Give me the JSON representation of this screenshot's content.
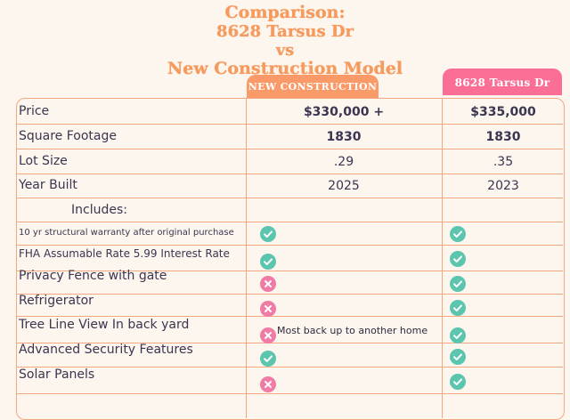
{
  "title": {
    "line1": "Comparison:",
    "line2": "8628 Tarsus Dr",
    "line3": "vs",
    "line4": "New Construction Model"
  },
  "columns": {
    "new_construction": "NEW CONSTRUCTION",
    "tarsus": "8628 Tarsus Dr"
  },
  "rows": {
    "price": {
      "label": "Price",
      "new": "$330,000 +",
      "tarsus": "$335,000"
    },
    "sqft": {
      "label": "Square Footage",
      "new": "1830",
      "tarsus": "1830"
    },
    "lot": {
      "label": "Lot Size",
      "new": ".29",
      "tarsus": ".35"
    },
    "year": {
      "label": "Year Built",
      "new": "2025",
      "tarsus": "2023"
    },
    "includes": {
      "label": "Includes:"
    },
    "warranty": {
      "label": "10 yr structural warranty after original purchase",
      "new": "check-icon",
      "tarsus": "check-icon"
    },
    "fha": {
      "label": "FHA Assumable Rate 5.99 Interest Rate",
      "new": "check-icon",
      "tarsus": "check-icon"
    },
    "fence": {
      "label": "Privacy Fence with gate",
      "new": "x-icon",
      "tarsus": "check-icon"
    },
    "fridge": {
      "label": "Refrigerator",
      "new": "x-icon",
      "tarsus": "check-icon"
    },
    "tree": {
      "label": "Tree Line View In back yard",
      "new": "x-icon",
      "new_note": "Most back up to another home",
      "tarsus": "check-icon"
    },
    "security": {
      "label": "Advanced Security Features",
      "new": "check-icon",
      "tarsus": "check-icon"
    },
    "solar": {
      "label": "Solar Panels",
      "new": "x-icon",
      "tarsus": "check-icon"
    }
  },
  "colors": {
    "title": "#f79a5e",
    "new_header": "#f99a68",
    "tarsus_header": "#fb6f97",
    "check": "#5cc5ae",
    "x": "#f07ba4",
    "grid": "#f4a880"
  }
}
